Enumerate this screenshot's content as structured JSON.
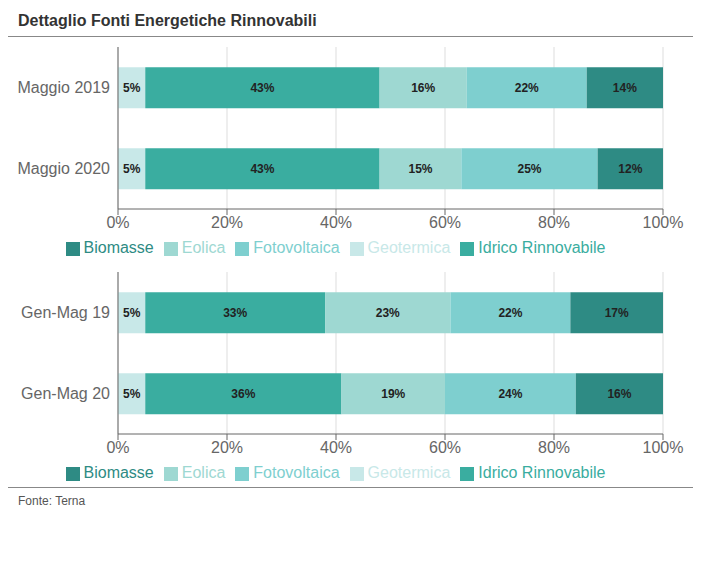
{
  "chart_data": [
    {
      "type": "bar",
      "title": "Dettaglio Fonti Energetiche Rinnovabili",
      "orientation": "horizontal",
      "stacked": true,
      "data_labels": true,
      "grid": true,
      "legend": "bottom",
      "categories": [
        "Maggio 2019",
        "Maggio 2020"
      ],
      "series": [
        {
          "name": "Geotermica",
          "color": "#c8e8e8",
          "values": [
            5,
            5
          ],
          "value_labels": [
            "5%",
            "5%"
          ]
        },
        {
          "name": "Idrico Rinnovabile",
          "color": "#3aada0",
          "values": [
            43,
            43
          ],
          "value_labels": [
            "43%",
            "43%"
          ]
        },
        {
          "name": "Eolica",
          "color": "#9ed8d2",
          "values": [
            16,
            15
          ],
          "value_labels": [
            "16%",
            "15%"
          ]
        },
        {
          "name": "Fotovoltaica",
          "color": "#7ecfcf",
          "values": [
            22,
            25
          ],
          "value_labels": [
            "22%",
            "25%"
          ]
        },
        {
          "name": "Biomasse",
          "color": "#2e8b84",
          "values": [
            14,
            12
          ],
          "value_labels": [
            "14%",
            "12%"
          ]
        }
      ],
      "xlim": [
        0,
        100
      ],
      "xticks": [
        {
          "value": 0,
          "label": "0%"
        },
        {
          "value": 20,
          "label": "20%"
        },
        {
          "value": 40,
          "label": "40%"
        },
        {
          "value": 60,
          "label": "60%"
        },
        {
          "value": 80,
          "label": "80%"
        },
        {
          "value": 100,
          "label": "100%"
        }
      ]
    },
    {
      "type": "bar",
      "orientation": "horizontal",
      "stacked": true,
      "data_labels": true,
      "grid": true,
      "legend": "bottom",
      "annotations": [
        "Fonte: Terna"
      ],
      "categories": [
        "Gen-Mag 19",
        "Gen-Mag 20"
      ],
      "series": [
        {
          "name": "Geotermica",
          "color": "#c8e8e8",
          "values": [
            5,
            5
          ],
          "value_labels": [
            "5%",
            "5%"
          ]
        },
        {
          "name": "Idrico Rinnovabile",
          "color": "#3aada0",
          "values": [
            33,
            36
          ],
          "value_labels": [
            "33%",
            "36%"
          ]
        },
        {
          "name": "Eolica",
          "color": "#9ed8d2",
          "values": [
            23,
            19
          ],
          "value_labels": [
            "23%",
            "19%"
          ]
        },
        {
          "name": "Fotovoltaica",
          "color": "#7ecfcf",
          "values": [
            22,
            24
          ],
          "value_labels": [
            "22%",
            "24%"
          ]
        },
        {
          "name": "Biomasse",
          "color": "#2e8b84",
          "values": [
            17,
            16
          ],
          "value_labels": [
            "17%",
            "16%"
          ]
        }
      ],
      "xlim": [
        0,
        100
      ],
      "xticks": [
        {
          "value": 0,
          "label": "0%"
        },
        {
          "value": 20,
          "label": "20%"
        },
        {
          "value": 40,
          "label": "40%"
        },
        {
          "value": 60,
          "label": "60%"
        },
        {
          "value": 80,
          "label": "80%"
        },
        {
          "value": 100,
          "label": "100%"
        }
      ]
    }
  ]
}
